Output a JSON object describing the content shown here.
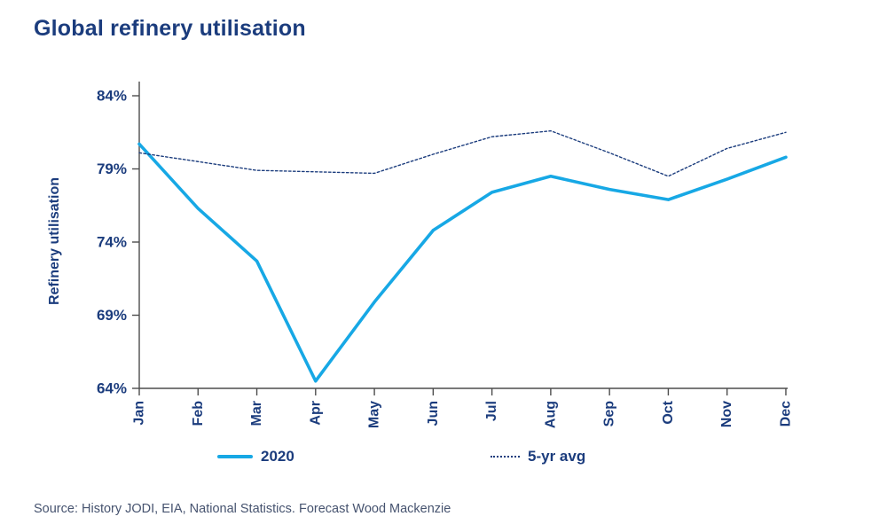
{
  "title": "Global refinery utilisation",
  "source": "Source: History JODI, EIA, National Statistics. Forecast Wood Mackenzie",
  "colors": {
    "accent_2020": "#17A8E5",
    "navy_text": "#1B3C7D",
    "axis": "#4d4d4d",
    "source_text": "#46536F"
  },
  "chart_data": {
    "type": "line",
    "title": "Global refinery utilisation",
    "xlabel": "",
    "ylabel": "Refinery utilisation",
    "x": [
      "Jan",
      "Feb",
      "Mar",
      "Apr",
      "May",
      "Jun",
      "Jul",
      "Aug",
      "Sep",
      "Oct",
      "Nov",
      "Dec"
    ],
    "ylim": [
      64,
      84
    ],
    "y_ticks": [
      "84%",
      "79%",
      "74%",
      "69%",
      "64%"
    ],
    "y_tick_values": [
      84,
      79,
      74,
      69,
      64
    ],
    "grid": false,
    "legend_position": "bottom",
    "series": [
      {
        "name": "2020",
        "style": "solid",
        "color": "#17A8E5",
        "values": [
          80.7,
          76.3,
          72.7,
          64.5,
          69.9,
          74.8,
          77.4,
          78.5,
          77.6,
          76.9,
          78.3,
          79.8
        ]
      },
      {
        "name": "5-yr avg",
        "style": "dotted",
        "color": "#1B3C7D",
        "values": [
          80.1,
          79.5,
          78.9,
          78.8,
          78.7,
          80.0,
          81.2,
          81.6,
          80.1,
          78.5,
          80.4,
          81.5
        ]
      }
    ]
  }
}
